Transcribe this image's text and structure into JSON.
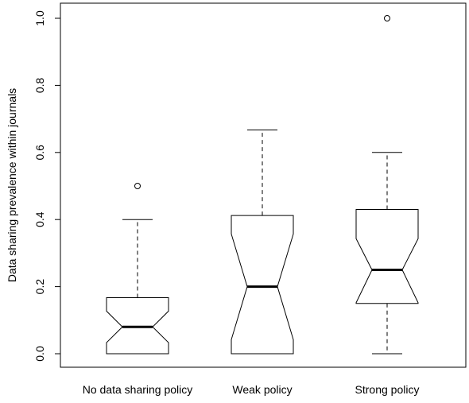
{
  "chart_data": {
    "type": "boxplot",
    "title": "",
    "xlabel": "",
    "ylabel": "Data sharing prevalence within journals",
    "ylim": [
      -0.04,
      1.04
    ],
    "yticks": [
      {
        "value": 0.0,
        "label": "0.0"
      },
      {
        "value": 0.2,
        "label": "0.2"
      },
      {
        "value": 0.4,
        "label": "0.4"
      },
      {
        "value": 0.6,
        "label": "0.6"
      },
      {
        "value": 0.8,
        "label": "0.8"
      },
      {
        "value": 1.0,
        "label": "1.0"
      }
    ],
    "categories": [
      "No data sharing policy",
      "Weak policy",
      "Strong policy"
    ],
    "grid": false,
    "legend": "none",
    "boxes": [
      {
        "category": "No data sharing policy",
        "whisker_low": 0.0,
        "q1": 0.0,
        "notch_low": 0.033,
        "median": 0.08,
        "notch_high": 0.127,
        "q3": 0.167,
        "whisker_high": 0.4,
        "outliers": [
          0.5
        ]
      },
      {
        "category": "Weak policy",
        "whisker_low": 0.0,
        "q1": 0.0,
        "notch_low": 0.042,
        "median": 0.2,
        "notch_high": 0.357,
        "q3": 0.412,
        "whisker_high": 0.667,
        "outliers": []
      },
      {
        "category": "Strong policy",
        "whisker_low": 0.0,
        "q1": 0.15,
        "notch_low": 0.152,
        "median": 0.25,
        "notch_high": 0.343,
        "q3": 0.43,
        "whisker_high": 0.6,
        "outliers": [
          1.0
        ]
      }
    ]
  }
}
